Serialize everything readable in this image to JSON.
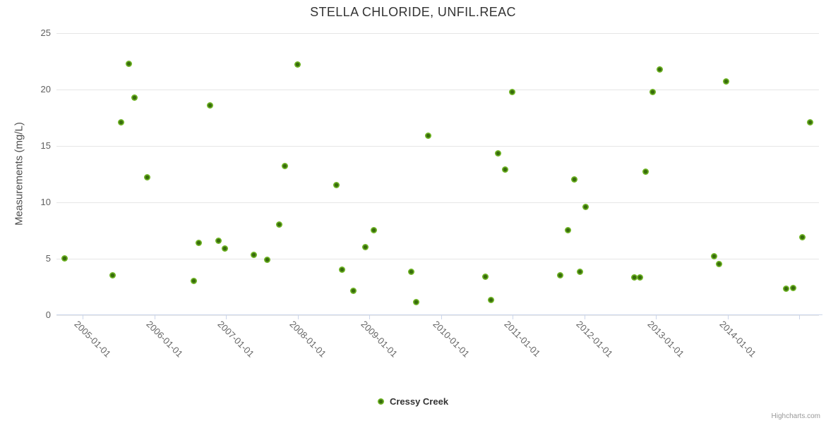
{
  "title": "STELLA CHLORIDE, UNFIL.REAC",
  "legend": {
    "label": "Cressy Creek"
  },
  "credit": "Highcharts.com",
  "colors": {
    "series_green": "#6db223",
    "series_green_core": "#386c0c",
    "grid": "#e6e6e6",
    "axis_line": "#ccd6eb",
    "title_text": "#333333",
    "tick_text": "#666666",
    "credit_text": "#999999"
  },
  "chart_data": {
    "type": "scatter",
    "title": "STELLA CHLORIDE, UNFIL.REAC",
    "xlabel": "",
    "ylabel": "Measurements (mg/L)",
    "ylim": [
      0,
      25
    ],
    "y_tick_interval": 5,
    "y_tick_labels": [
      "0",
      "5",
      "10",
      "15",
      "20",
      "25"
    ],
    "x_axis_type": "datetime",
    "xlim_years": [
      2004.635,
      2015.275
    ],
    "x_ticks": [
      {
        "year": 2005,
        "label": "2005-01-01"
      },
      {
        "year": 2006,
        "label": "2006-01-01"
      },
      {
        "year": 2007,
        "label": "2007-01-01"
      },
      {
        "year": 2008,
        "label": "2008-01-01"
      },
      {
        "year": 2009,
        "label": "2009-01-01"
      },
      {
        "year": 2010,
        "label": "2010-01-01"
      },
      {
        "year": 2011,
        "label": "2011-01-01"
      },
      {
        "year": 2012,
        "label": "2012-01-01"
      },
      {
        "year": 2013,
        "label": "2013-01-01"
      },
      {
        "year": 2014,
        "label": "2014-01-01"
      },
      {
        "year": 2015,
        "label": ""
      }
    ],
    "grid": "horizontal",
    "legend_position": "bottom-center",
    "series": [
      {
        "name": "Cressy Creek",
        "color": "#6db223",
        "data": [
          {
            "date": "2004-10-01",
            "value": 5.0
          },
          {
            "date": "2005-06-01",
            "value": 3.5
          },
          {
            "date": "2005-07-15",
            "value": 17.1
          },
          {
            "date": "2005-08-25",
            "value": 22.3
          },
          {
            "date": "2005-09-22",
            "value": 19.3
          },
          {
            "date": "2005-11-25",
            "value": 12.2
          },
          {
            "date": "2006-07-20",
            "value": 3.0
          },
          {
            "date": "2006-08-15",
            "value": 6.4
          },
          {
            "date": "2006-10-12",
            "value": 18.6
          },
          {
            "date": "2006-11-25",
            "value": 6.6
          },
          {
            "date": "2006-12-28",
            "value": 5.9
          },
          {
            "date": "2007-05-25",
            "value": 5.3
          },
          {
            "date": "2007-08-01",
            "value": 4.9
          },
          {
            "date": "2007-09-30",
            "value": 8.0
          },
          {
            "date": "2007-10-30",
            "value": 13.2
          },
          {
            "date": "2008-01-03",
            "value": 22.2
          },
          {
            "date": "2008-07-18",
            "value": 11.5
          },
          {
            "date": "2008-08-17",
            "value": 4.0
          },
          {
            "date": "2008-10-12",
            "value": 2.1
          },
          {
            "date": "2008-12-12",
            "value": 6.0
          },
          {
            "date": "2009-01-25",
            "value": 7.5
          },
          {
            "date": "2009-08-03",
            "value": 3.8
          },
          {
            "date": "2009-08-28",
            "value": 1.1
          },
          {
            "date": "2009-10-30",
            "value": 15.9
          },
          {
            "date": "2010-08-16",
            "value": 3.4
          },
          {
            "date": "2010-09-15",
            "value": 1.3
          },
          {
            "date": "2010-10-20",
            "value": 14.3
          },
          {
            "date": "2010-11-25",
            "value": 12.9
          },
          {
            "date": "2011-01-01",
            "value": 19.8
          },
          {
            "date": "2011-09-02",
            "value": 3.5
          },
          {
            "date": "2011-10-09",
            "value": 7.5
          },
          {
            "date": "2011-11-13",
            "value": 12.0
          },
          {
            "date": "2011-12-11",
            "value": 3.8
          },
          {
            "date": "2012-01-10",
            "value": 9.6
          },
          {
            "date": "2012-09-14",
            "value": 3.3
          },
          {
            "date": "2012-10-13",
            "value": 3.3
          },
          {
            "date": "2012-11-11",
            "value": 12.7
          },
          {
            "date": "2012-12-14",
            "value": 19.8
          },
          {
            "date": "2013-01-19",
            "value": 21.8
          },
          {
            "date": "2013-10-23",
            "value": 5.2
          },
          {
            "date": "2013-11-19",
            "value": 4.5
          },
          {
            "date": "2013-12-23",
            "value": 20.7
          },
          {
            "date": "2014-10-25",
            "value": 2.3
          },
          {
            "date": "2014-12-01",
            "value": 2.4
          },
          {
            "date": "2015-01-19",
            "value": 6.9
          },
          {
            "date": "2015-02-27",
            "value": 17.1
          }
        ]
      }
    ]
  }
}
